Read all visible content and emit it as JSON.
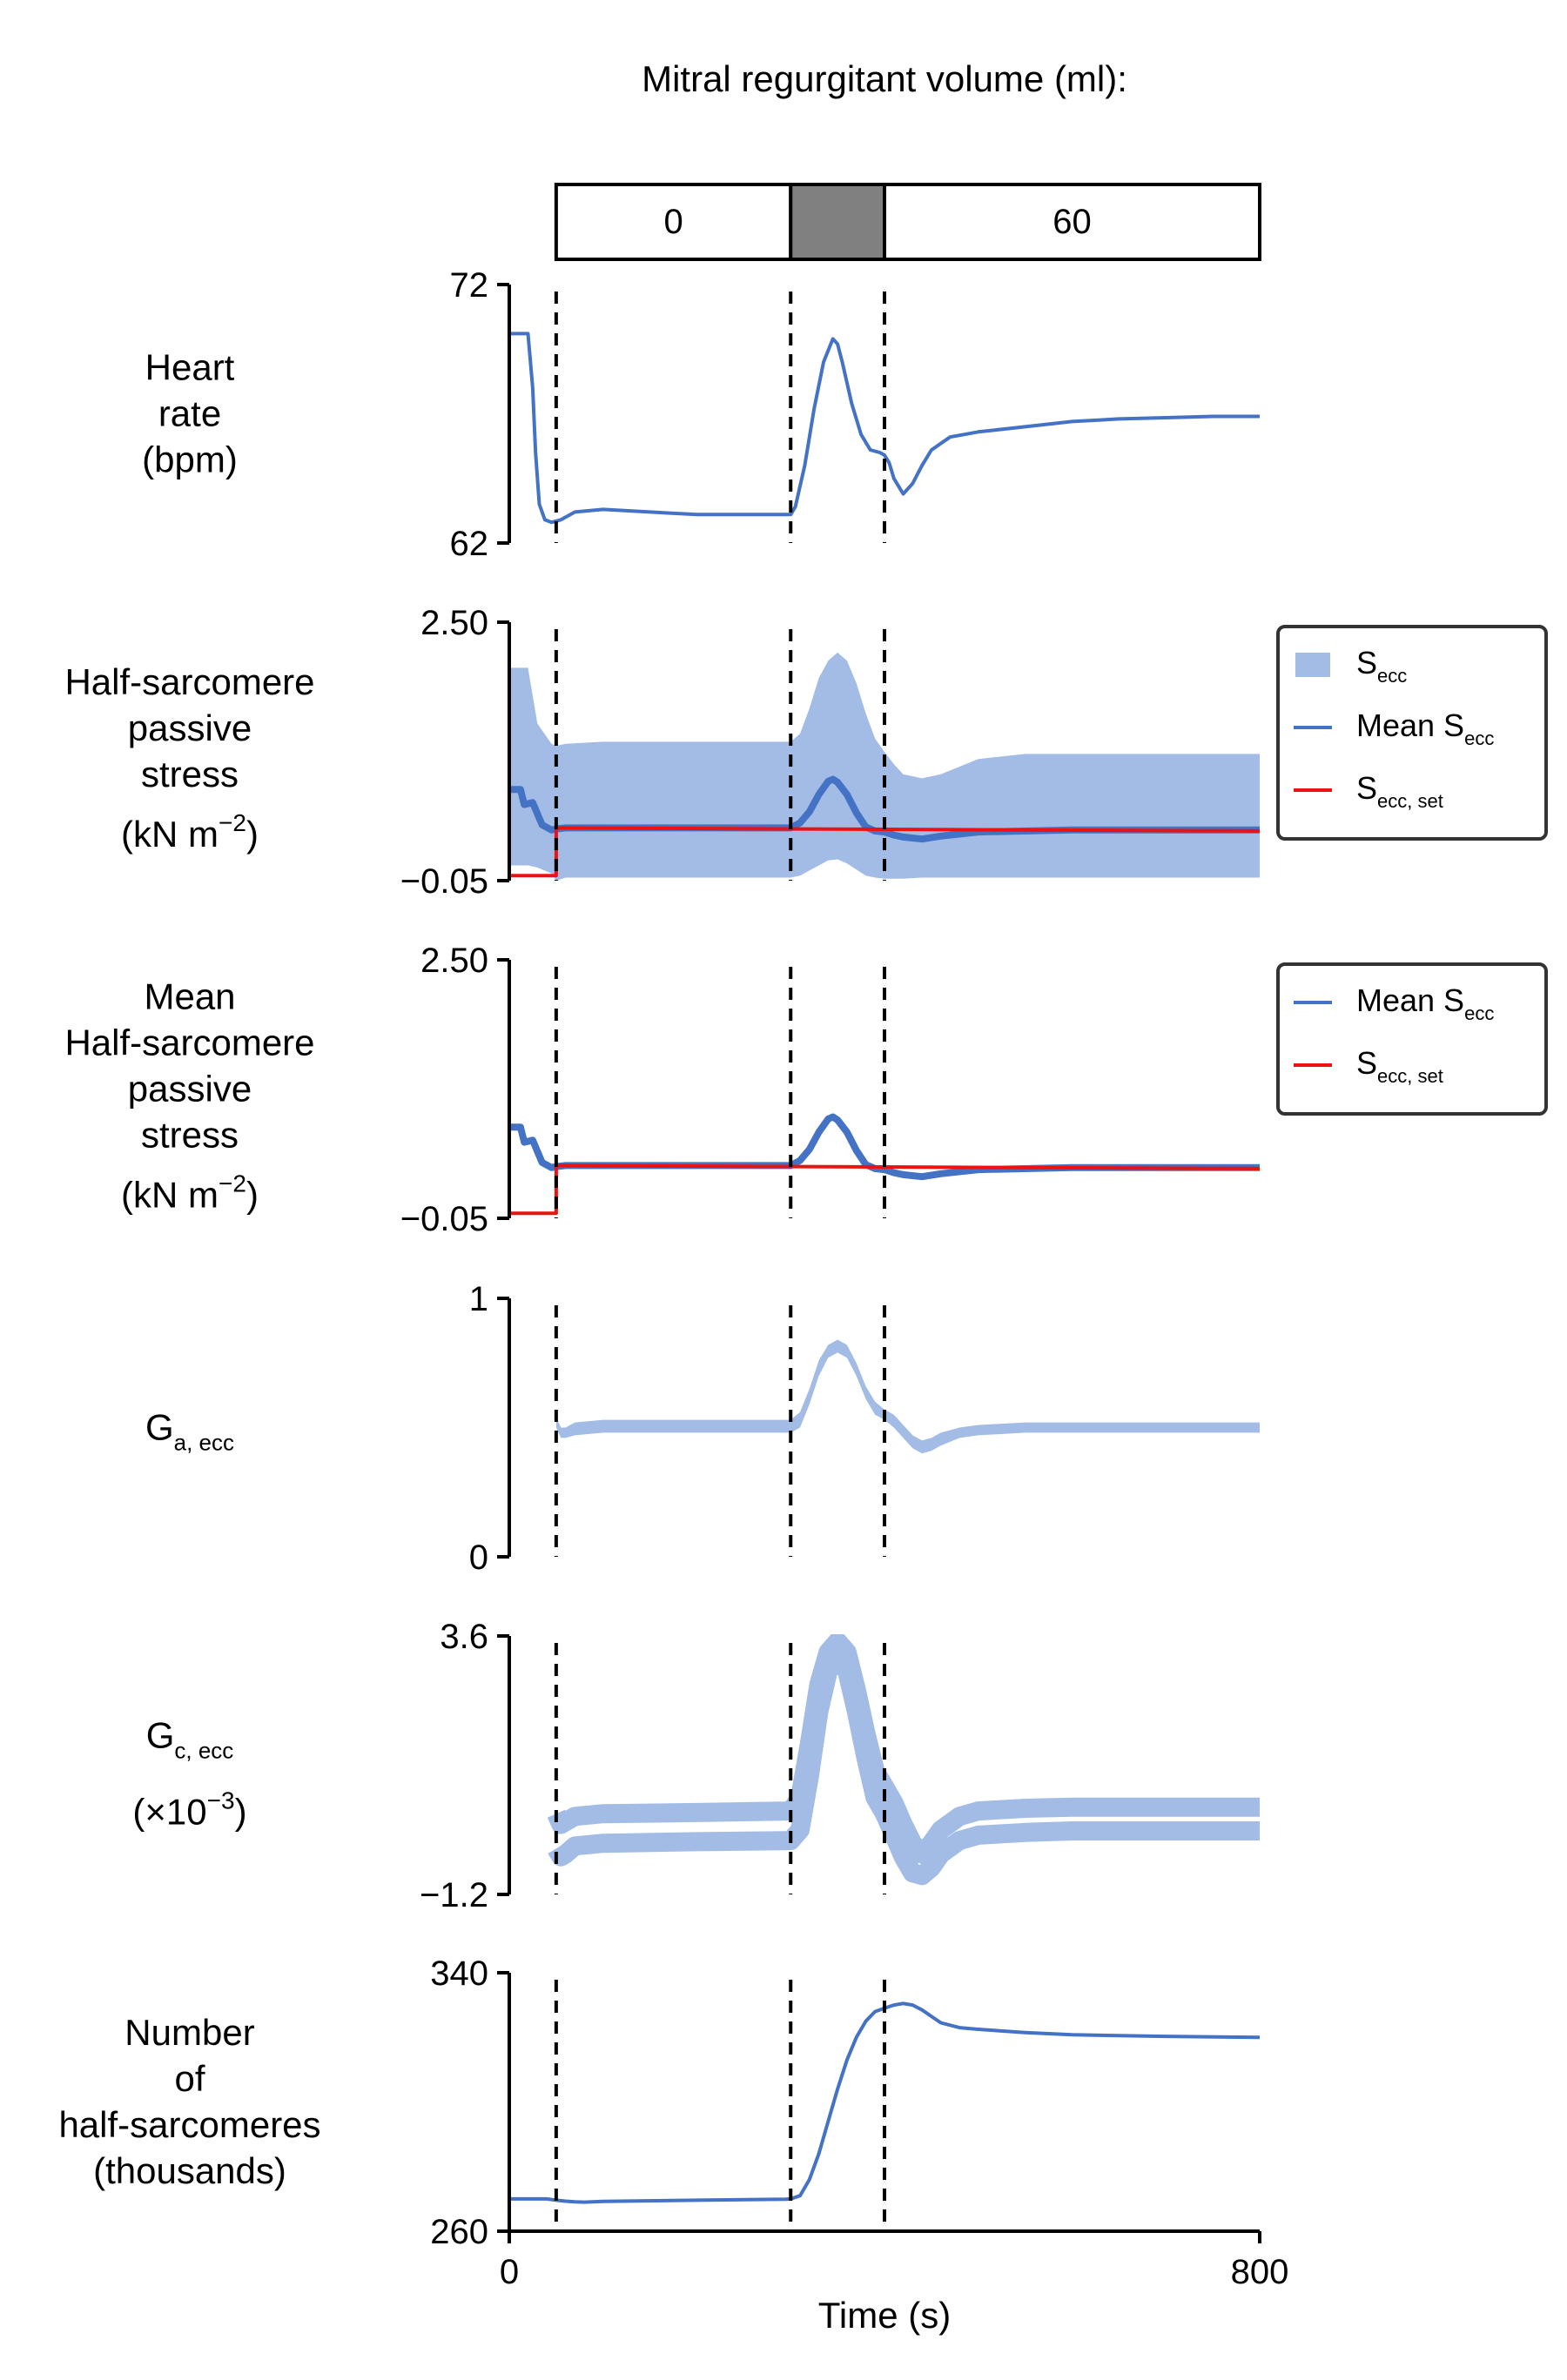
{
  "figure": {
    "title": "Mitral regurgitant volume (ml):",
    "x_label": "Time (s)",
    "x_ticks": [
      "0",
      "800"
    ],
    "phase_bar": [
      {
        "label": "0",
        "t0": 50,
        "t1": 300,
        "fill": "#ffffff"
      },
      {
        "label": "",
        "t0": 300,
        "t1": 400,
        "fill": "#808080"
      },
      {
        "label": "60",
        "t0": 400,
        "t1": 800,
        "fill": "#ffffff"
      }
    ],
    "dashed_lines_at_s": [
      50,
      300,
      400
    ],
    "colors": {
      "blue": "#4472c4",
      "light_blue": "#a3bce6",
      "red": "#ee1111",
      "dash": "#000000"
    }
  },
  "chart_data": [
    {
      "type": "line",
      "id": "heart-rate",
      "ylabel": [
        "Heart",
        "rate",
        "(bpm)"
      ],
      "ylim": [
        62,
        72
      ],
      "yticks": [
        "72",
        "62"
      ],
      "xlim": [
        0,
        800
      ],
      "series": [
        {
          "style": "line",
          "color": "#4472c4",
          "x": [
            0,
            20,
            25,
            28,
            32,
            38,
            45,
            55,
            70,
            100,
            150,
            200,
            250,
            295,
            300,
            305,
            315,
            325,
            335,
            345,
            350,
            355,
            365,
            375,
            385,
            395,
            400,
            405,
            410,
            420,
            430,
            440,
            450,
            470,
            500,
            550,
            600,
            650,
            700,
            750,
            800
          ],
          "y": [
            70.1,
            70.1,
            68,
            65.5,
            63.5,
            62.9,
            62.8,
            62.9,
            63.2,
            63.3,
            63.2,
            63.1,
            63.1,
            63.1,
            63.1,
            63.4,
            65.0,
            67.2,
            69.0,
            69.9,
            69.7,
            69.0,
            67.4,
            66.2,
            65.6,
            65.5,
            65.4,
            65.1,
            64.5,
            63.9,
            64.3,
            65.0,
            65.6,
            66.1,
            66.3,
            66.5,
            66.7,
            66.8,
            66.85,
            66.9,
            66.9
          ]
        }
      ]
    },
    {
      "type": "area",
      "id": "half-sarcomere-passive-stress",
      "ylabel": [
        "Half-sarcomere",
        "passive",
        "stress",
        "(kN m",
        "−2",
        ")"
      ],
      "ylim": [
        -0.05,
        2.5
      ],
      "yticks": [
        "2.50",
        "−0.05"
      ],
      "xlim": [
        0,
        800
      ],
      "legend": [
        {
          "base": "S",
          "sub": "ecc",
          "kind": "band"
        },
        {
          "base": "Mean S",
          "sub": "ecc",
          "kind": "line"
        },
        {
          "base": "S",
          "sub": "ecc, set",
          "kind": "red"
        }
      ],
      "series": [
        {
          "style": "band",
          "color": "#a3bce6",
          "x": [
            0,
            20,
            30,
            45,
            50,
            60,
            100,
            200,
            300,
            310,
            320,
            330,
            340,
            350,
            360,
            370,
            380,
            390,
            400,
            410,
            420,
            440,
            460,
            500,
            550,
            600,
            700,
            800
          ],
          "hi": [
            2.05,
            2.05,
            1.5,
            1.3,
            1.28,
            1.3,
            1.32,
            1.32,
            1.32,
            1.4,
            1.65,
            1.95,
            2.12,
            2.2,
            2.12,
            1.9,
            1.6,
            1.35,
            1.22,
            1.1,
            1.0,
            0.96,
            1.0,
            1.15,
            1.2,
            1.2,
            1.2,
            1.2
          ],
          "lo": [
            0.1,
            0.1,
            0.08,
            0.02,
            -0.05,
            -0.02,
            -0.02,
            -0.02,
            -0.02,
            0.0,
            0.05,
            0.1,
            0.15,
            0.16,
            0.12,
            0.06,
            0.0,
            -0.02,
            -0.03,
            -0.03,
            -0.03,
            -0.02,
            -0.02,
            -0.02,
            -0.02,
            -0.02,
            -0.02,
            -0.02
          ]
        },
        {
          "style": "thick",
          "color": "#4472c4",
          "x": [
            0,
            12,
            16,
            25,
            35,
            45,
            50,
            60,
            100,
            200,
            300,
            310,
            320,
            330,
            340,
            345,
            350,
            360,
            370,
            380,
            390,
            400,
            410,
            420,
            440,
            460,
            500,
            600,
            700,
            800
          ],
          "y": [
            0.85,
            0.85,
            0.7,
            0.72,
            0.5,
            0.45,
            0.46,
            0.47,
            0.47,
            0.47,
            0.47,
            0.52,
            0.63,
            0.8,
            0.93,
            0.95,
            0.92,
            0.8,
            0.62,
            0.48,
            0.44,
            0.43,
            0.4,
            0.38,
            0.36,
            0.39,
            0.43,
            0.45,
            0.45,
            0.45
          ]
        },
        {
          "style": "step",
          "color": "#ee1111",
          "x": [
            0,
            50,
            50,
            800
          ],
          "y": [
            0.0,
            0.0,
            0.47,
            0.44
          ]
        }
      ]
    },
    {
      "type": "line",
      "id": "mean-half-sarcomere-passive-stress",
      "ylabel": [
        "Mean",
        "Half-sarcomere",
        "passive",
        "stress",
        "(kN m",
        "−2",
        ")"
      ],
      "ylim": [
        -0.05,
        2.5
      ],
      "yticks": [
        "2.50",
        "−0.05"
      ],
      "xlim": [
        0,
        800
      ],
      "legend": [
        {
          "base": "Mean S",
          "sub": "ecc",
          "kind": "line"
        },
        {
          "base": "S",
          "sub": "ecc, set",
          "kind": "red"
        }
      ],
      "series": [
        {
          "style": "thick",
          "color": "#4472c4",
          "x": [
            0,
            12,
            16,
            25,
            35,
            45,
            50,
            60,
            100,
            200,
            300,
            310,
            320,
            330,
            340,
            345,
            350,
            360,
            370,
            380,
            390,
            400,
            410,
            420,
            440,
            460,
            500,
            600,
            700,
            800
          ],
          "y": [
            0.85,
            0.85,
            0.7,
            0.72,
            0.5,
            0.45,
            0.46,
            0.47,
            0.47,
            0.47,
            0.47,
            0.52,
            0.63,
            0.8,
            0.93,
            0.95,
            0.92,
            0.8,
            0.62,
            0.48,
            0.44,
            0.43,
            0.4,
            0.38,
            0.36,
            0.39,
            0.43,
            0.45,
            0.45,
            0.45
          ]
        },
        {
          "style": "step",
          "color": "#ee1111",
          "x": [
            0,
            50,
            50,
            800
          ],
          "y": [
            0.0,
            0.0,
            0.47,
            0.44
          ]
        }
      ]
    },
    {
      "type": "area",
      "id": "g-a-ecc",
      "ylabel_sub": {
        "base": "G",
        "sub": "a, ecc"
      },
      "ylim": [
        0,
        1
      ],
      "yticks": [
        "1",
        "0"
      ],
      "xlim": [
        0,
        800
      ],
      "series": [
        {
          "style": "band",
          "color": "#a3bce6",
          "x": [
            50,
            55,
            60,
            70,
            100,
            200,
            300,
            310,
            320,
            330,
            340,
            350,
            360,
            370,
            380,
            390,
            400,
            410,
            420,
            430,
            440,
            450,
            460,
            480,
            500,
            550,
            600,
            700,
            800
          ],
          "hi": [
            0.54,
            0.5,
            0.5,
            0.52,
            0.53,
            0.53,
            0.53,
            0.56,
            0.65,
            0.76,
            0.82,
            0.84,
            0.82,
            0.75,
            0.66,
            0.6,
            0.57,
            0.55,
            0.51,
            0.47,
            0.45,
            0.46,
            0.48,
            0.5,
            0.51,
            0.52,
            0.52,
            0.52,
            0.52
          ],
          "lo": [
            0.5,
            0.46,
            0.46,
            0.47,
            0.48,
            0.48,
            0.48,
            0.5,
            0.59,
            0.7,
            0.77,
            0.79,
            0.77,
            0.7,
            0.61,
            0.55,
            0.53,
            0.5,
            0.46,
            0.42,
            0.4,
            0.41,
            0.43,
            0.46,
            0.47,
            0.48,
            0.48,
            0.48,
            0.48
          ]
        }
      ]
    },
    {
      "type": "area",
      "id": "g-c-ecc",
      "ylabel_sub": {
        "base": "G",
        "sub": "c, ecc"
      },
      "ylabel_extra": {
        "base": "(×10",
        "sup": "−3",
        "end": ")"
      },
      "ylim": [
        -1.2,
        3.6
      ],
      "yticks": [
        "3.6",
        "−1.2"
      ],
      "xlim": [
        0,
        800
      ],
      "series": [
        {
          "style": "band",
          "color": "#a3bce6",
          "x": [
            50,
            55,
            60,
            70,
            100,
            200,
            300,
            310,
            320,
            330,
            340,
            350,
            360,
            370,
            380,
            390,
            400,
            410,
            420,
            430,
            440,
            450,
            460,
            480,
            500,
            550,
            600,
            700,
            800
          ],
          "hi": [
            0.3,
            0.1,
            0.15,
            0.25,
            0.3,
            0.32,
            0.35,
            0.6,
            1.6,
            2.7,
            3.3,
            3.5,
            3.3,
            2.6,
            1.8,
            1.1,
            0.8,
            0.5,
            0.1,
            -0.25,
            -0.45,
            -0.25,
            0.0,
            0.25,
            0.35,
            0.4,
            0.42,
            0.42,
            0.42
          ]
        },
        {
          "style": "band",
          "color": "#a3bce6",
          "x": [
            50,
            55,
            60,
            70,
            100,
            200,
            300,
            310,
            320,
            330,
            340,
            350,
            360,
            370,
            380,
            390,
            400,
            410,
            420,
            430,
            440,
            450,
            460,
            480,
            500,
            550,
            600,
            700,
            800
          ],
          "lo": [
            -0.35,
            -0.5,
            -0.45,
            -0.3,
            -0.25,
            -0.22,
            -0.2,
            0.0,
            1.0,
            2.2,
            2.95,
            3.15,
            2.95,
            2.2,
            1.35,
            0.6,
            0.3,
            -0.1,
            -0.5,
            -0.8,
            -0.85,
            -0.7,
            -0.45,
            -0.2,
            -0.1,
            -0.05,
            -0.02,
            -0.02,
            -0.02
          ]
        }
      ]
    },
    {
      "type": "line",
      "id": "number-of-half-sarcomeres",
      "ylabel": [
        "Number",
        "of",
        "half-sarcomeres",
        "(thousands)"
      ],
      "ylim": [
        260,
        340
      ],
      "yticks": [
        "340",
        "260"
      ],
      "xlim": [
        0,
        800
      ],
      "series": [
        {
          "style": "line",
          "color": "#4472c4",
          "x": [
            0,
            40,
            50,
            60,
            70,
            80,
            100,
            200,
            295,
            300,
            310,
            320,
            330,
            340,
            350,
            360,
            370,
            380,
            390,
            400,
            410,
            420,
            430,
            440,
            450,
            460,
            480,
            500,
            550,
            600,
            700,
            800
          ],
          "y": [
            270,
            270,
            269.6,
            269.3,
            269.1,
            269,
            269.2,
            269.6,
            269.9,
            270,
            271,
            276,
            284,
            294,
            304,
            313,
            320,
            325,
            328,
            329,
            330,
            330.5,
            330,
            328.5,
            326.5,
            324.5,
            323,
            322.5,
            321.5,
            320.8,
            320.3,
            320.0
          ]
        }
      ]
    }
  ]
}
